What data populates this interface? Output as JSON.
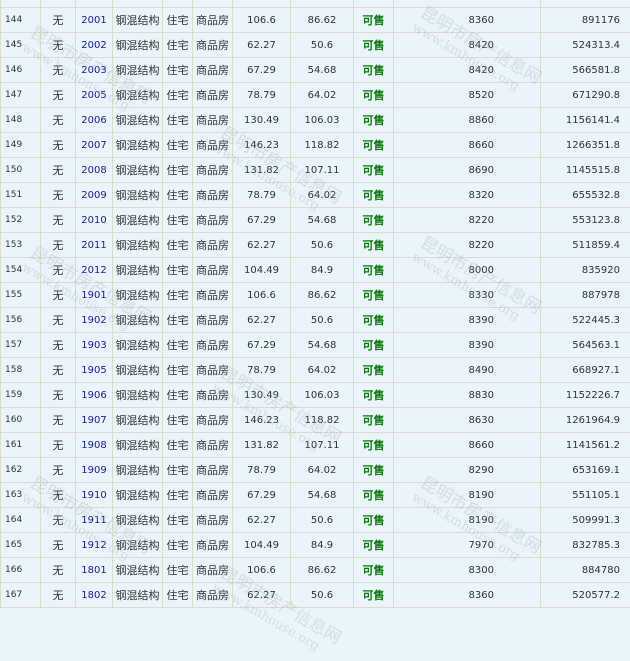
{
  "watermark": {
    "name": "昆明市房产信息网",
    "url": "www.kmhouse.org"
  },
  "rows": [
    {
      "no": "144",
      "mark": "无",
      "room": "2001",
      "structure": "钢混结构",
      "use": "住宅",
      "type": "商品房",
      "area": "106.6",
      "inner_area": "86.62",
      "status": "可售",
      "price": "8360",
      "total": "891176"
    },
    {
      "no": "145",
      "mark": "无",
      "room": "2002",
      "structure": "钢混结构",
      "use": "住宅",
      "type": "商品房",
      "area": "62.27",
      "inner_area": "50.6",
      "status": "可售",
      "price": "8420",
      "total": "524313.4"
    },
    {
      "no": "146",
      "mark": "无",
      "room": "2003",
      "structure": "钢混结构",
      "use": "住宅",
      "type": "商品房",
      "area": "67.29",
      "inner_area": "54.68",
      "status": "可售",
      "price": "8420",
      "total": "566581.8"
    },
    {
      "no": "147",
      "mark": "无",
      "room": "2005",
      "structure": "钢混结构",
      "use": "住宅",
      "type": "商品房",
      "area": "78.79",
      "inner_area": "64.02",
      "status": "可售",
      "price": "8520",
      "total": "671290.8"
    },
    {
      "no": "148",
      "mark": "无",
      "room": "2006",
      "structure": "钢混结构",
      "use": "住宅",
      "type": "商品房",
      "area": "130.49",
      "inner_area": "106.03",
      "status": "可售",
      "price": "8860",
      "total": "1156141.4"
    },
    {
      "no": "149",
      "mark": "无",
      "room": "2007",
      "structure": "钢混结构",
      "use": "住宅",
      "type": "商品房",
      "area": "146.23",
      "inner_area": "118.82",
      "status": "可售",
      "price": "8660",
      "total": "1266351.8"
    },
    {
      "no": "150",
      "mark": "无",
      "room": "2008",
      "structure": "钢混结构",
      "use": "住宅",
      "type": "商品房",
      "area": "131.82",
      "inner_area": "107.11",
      "status": "可售",
      "price": "8690",
      "total": "1145515.8"
    },
    {
      "no": "151",
      "mark": "无",
      "room": "2009",
      "structure": "钢混结构",
      "use": "住宅",
      "type": "商品房",
      "area": "78.79",
      "inner_area": "64.02",
      "status": "可售",
      "price": "8320",
      "total": "655532.8"
    },
    {
      "no": "152",
      "mark": "无",
      "room": "2010",
      "structure": "钢混结构",
      "use": "住宅",
      "type": "商品房",
      "area": "67.29",
      "inner_area": "54.68",
      "status": "可售",
      "price": "8220",
      "total": "553123.8"
    },
    {
      "no": "153",
      "mark": "无",
      "room": "2011",
      "structure": "钢混结构",
      "use": "住宅",
      "type": "商品房",
      "area": "62.27",
      "inner_area": "50.6",
      "status": "可售",
      "price": "8220",
      "total": "511859.4"
    },
    {
      "no": "154",
      "mark": "无",
      "room": "2012",
      "structure": "钢混结构",
      "use": "住宅",
      "type": "商品房",
      "area": "104.49",
      "inner_area": "84.9",
      "status": "可售",
      "price": "8000",
      "total": "835920"
    },
    {
      "no": "155",
      "mark": "无",
      "room": "1901",
      "structure": "钢混结构",
      "use": "住宅",
      "type": "商品房",
      "area": "106.6",
      "inner_area": "86.62",
      "status": "可售",
      "price": "8330",
      "total": "887978"
    },
    {
      "no": "156",
      "mark": "无",
      "room": "1902",
      "structure": "钢混结构",
      "use": "住宅",
      "type": "商品房",
      "area": "62.27",
      "inner_area": "50.6",
      "status": "可售",
      "price": "8390",
      "total": "522445.3"
    },
    {
      "no": "157",
      "mark": "无",
      "room": "1903",
      "structure": "钢混结构",
      "use": "住宅",
      "type": "商品房",
      "area": "67.29",
      "inner_area": "54.68",
      "status": "可售",
      "price": "8390",
      "total": "564563.1"
    },
    {
      "no": "158",
      "mark": "无",
      "room": "1905",
      "structure": "钢混结构",
      "use": "住宅",
      "type": "商品房",
      "area": "78.79",
      "inner_area": "64.02",
      "status": "可售",
      "price": "8490",
      "total": "668927.1"
    },
    {
      "no": "159",
      "mark": "无",
      "room": "1906",
      "structure": "钢混结构",
      "use": "住宅",
      "type": "商品房",
      "area": "130.49",
      "inner_area": "106.03",
      "status": "可售",
      "price": "8830",
      "total": "1152226.7"
    },
    {
      "no": "160",
      "mark": "无",
      "room": "1907",
      "structure": "钢混结构",
      "use": "住宅",
      "type": "商品房",
      "area": "146.23",
      "inner_area": "118.82",
      "status": "可售",
      "price": "8630",
      "total": "1261964.9"
    },
    {
      "no": "161",
      "mark": "无",
      "room": "1908",
      "structure": "钢混结构",
      "use": "住宅",
      "type": "商品房",
      "area": "131.82",
      "inner_area": "107.11",
      "status": "可售",
      "price": "8660",
      "total": "1141561.2"
    },
    {
      "no": "162",
      "mark": "无",
      "room": "1909",
      "structure": "钢混结构",
      "use": "住宅",
      "type": "商品房",
      "area": "78.79",
      "inner_area": "64.02",
      "status": "可售",
      "price": "8290",
      "total": "653169.1"
    },
    {
      "no": "163",
      "mark": "无",
      "room": "1910",
      "structure": "钢混结构",
      "use": "住宅",
      "type": "商品房",
      "area": "67.29",
      "inner_area": "54.68",
      "status": "可售",
      "price": "8190",
      "total": "551105.1"
    },
    {
      "no": "164",
      "mark": "无",
      "room": "1911",
      "structure": "钢混结构",
      "use": "住宅",
      "type": "商品房",
      "area": "62.27",
      "inner_area": "50.6",
      "status": "可售",
      "price": "8190",
      "total": "509991.3"
    },
    {
      "no": "165",
      "mark": "无",
      "room": "1912",
      "structure": "钢混结构",
      "use": "住宅",
      "type": "商品房",
      "area": "104.49",
      "inner_area": "84.9",
      "status": "可售",
      "price": "7970",
      "total": "832785.3"
    },
    {
      "no": "166",
      "mark": "无",
      "room": "1801",
      "structure": "钢混结构",
      "use": "住宅",
      "type": "商品房",
      "area": "106.6",
      "inner_area": "86.62",
      "status": "可售",
      "price": "8300",
      "total": "884780"
    },
    {
      "no": "167",
      "mark": "无",
      "room": "1802",
      "structure": "钢混结构",
      "use": "住宅",
      "type": "商品房",
      "area": "62.27",
      "inner_area": "50.6",
      "status": "可售",
      "price": "8360",
      "total": "520577.2"
    }
  ]
}
